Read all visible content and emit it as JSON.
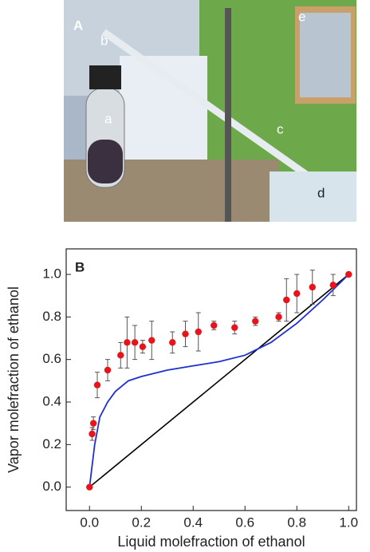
{
  "photo": {
    "panel_label": "A",
    "labels": [
      "a",
      "b",
      "c",
      "d",
      "e"
    ]
  },
  "chart_data": {
    "type": "scatter",
    "panel_label": "B",
    "x_label": "Liquid molefraction of ethanol",
    "y_label": "Vapor molefraction of ethanol",
    "xlim": [
      -0.09,
      1.03
    ],
    "ylim": [
      -0.11,
      1.12
    ],
    "xticks": [
      {
        "value": 0,
        "label": "0.0"
      },
      {
        "value": 0.2,
        "label": "0.2"
      },
      {
        "value": 0.4,
        "label": "0.4"
      },
      {
        "value": 0.6,
        "label": "0.6"
      },
      {
        "value": 0.8,
        "label": "0.8"
      },
      {
        "value": 1,
        "label": "1.0"
      }
    ],
    "yticks": [
      {
        "value": 0,
        "label": "0.0"
      },
      {
        "value": 0.2,
        "label": "0.2"
      },
      {
        "value": 0.4,
        "label": "0.4"
      },
      {
        "value": 0.6,
        "label": "0.6"
      },
      {
        "value": 0.8,
        "label": "0.8"
      },
      {
        "value": 1,
        "label": "1.0"
      }
    ],
    "points": {
      "color": "#e8141b",
      "x": [
        0,
        0.01,
        0.015,
        0.03,
        0.07,
        0.12,
        0.145,
        0.175,
        0.205,
        0.24,
        0.32,
        0.37,
        0.42,
        0.48,
        0.56,
        0.64,
        0.73,
        0.76,
        0.8,
        0.86,
        0.94,
        1.0
      ],
      "y": [
        0,
        0.25,
        0.3,
        0.48,
        0.55,
        0.62,
        0.68,
        0.68,
        0.66,
        0.69,
        0.68,
        0.72,
        0.73,
        0.76,
        0.75,
        0.78,
        0.8,
        0.88,
        0.91,
        0.94,
        0.95,
        1.0
      ],
      "errors": [
        0,
        0.03,
        0.03,
        0.06,
        0.05,
        0.06,
        0.12,
        0.08,
        0.03,
        0.09,
        0.05,
        0.06,
        0.09,
        0.02,
        0.03,
        0.02,
        0.02,
        0.1,
        0.09,
        0.08,
        0.05,
        0
      ]
    },
    "curve": {
      "color": "#1f2fd0",
      "x": [
        0,
        0.02,
        0.04,
        0.07,
        0.1,
        0.15,
        0.2,
        0.3,
        0.4,
        0.5,
        0.6,
        0.7,
        0.8,
        0.9,
        1.0
      ],
      "y": [
        0,
        0.2,
        0.33,
        0.4,
        0.45,
        0.5,
        0.52,
        0.55,
        0.57,
        0.59,
        0.62,
        0.68,
        0.77,
        0.88,
        1.0
      ]
    },
    "diagonal": {
      "color": "#000000",
      "x": [
        0,
        1
      ],
      "y": [
        0,
        1
      ]
    }
  }
}
